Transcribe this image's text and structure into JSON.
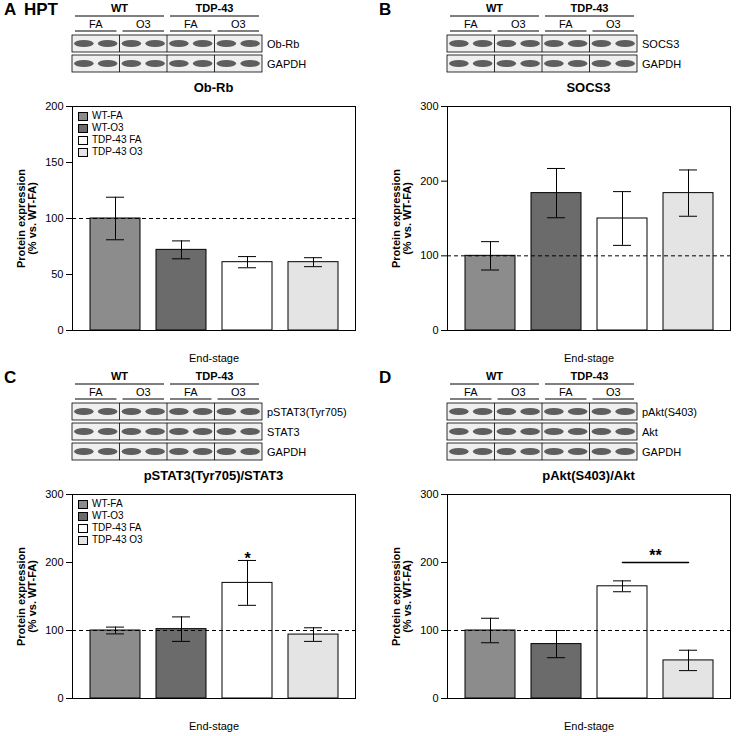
{
  "chart_data": [
    {
      "type": "bar",
      "panel": "A",
      "region_label": "HPT",
      "title": "Ob-Rb",
      "blot": {
        "groups": [
          "WT",
          "TDP-43"
        ],
        "conditions": [
          "FA",
          "O3",
          "FA",
          "O3"
        ],
        "bands": [
          "Ob-Rb",
          "GAPDH"
        ]
      },
      "categories": [
        "WT-FA",
        "WT-O3",
        "TDP-43 FA",
        "TDP-43 O3"
      ],
      "values": [
        100,
        72,
        61,
        61
      ],
      "errors": [
        19,
        8,
        5,
        4
      ],
      "colors": [
        "#8c8c8c",
        "#6b6b6b",
        "#ffffff",
        "#e4e4e4"
      ],
      "ylabel": "Protein expression\n(% vs. WT-FA)",
      "xlabel": "End-stage",
      "ylim": [
        0,
        200
      ],
      "yticks": [
        0,
        50,
        100,
        150,
        200
      ],
      "reference_line": 100,
      "legend": "upper left",
      "tick_labels": "y"
    },
    {
      "type": "bar",
      "panel": "B",
      "title": "SOCS3",
      "blot": {
        "groups": [
          "WT",
          "TDP-43"
        ],
        "conditions": [
          "FA",
          "O3",
          "FA",
          "O3"
        ],
        "bands": [
          "SOCS3",
          "GAPDH"
        ]
      },
      "categories": [
        "WT-FA",
        "WT-O3",
        "TDP-43 FA",
        "TDP-43 O3"
      ],
      "values": [
        100,
        184,
        150,
        184
      ],
      "errors": [
        19,
        33,
        36,
        31
      ],
      "colors": [
        "#8c8c8c",
        "#6b6b6b",
        "#ffffff",
        "#e4e4e4"
      ],
      "ylabel": "Protein expression\n(% vs. WT-FA)",
      "xlabel": "End-stage",
      "ylim": [
        0,
        300
      ],
      "yticks": [
        0,
        100,
        200,
        300
      ],
      "reference_line": 100,
      "tick_labels": "y"
    },
    {
      "type": "bar",
      "panel": "C",
      "title": "pSTAT3(Tyr705)/STAT3",
      "blot": {
        "groups": [
          "WT",
          "TDP-43"
        ],
        "conditions": [
          "FA",
          "O3",
          "FA",
          "O3"
        ],
        "bands": [
          "pSTAT3(Tyr705)",
          "STAT3",
          "GAPDH"
        ]
      },
      "categories": [
        "WT-FA",
        "WT-O3",
        "TDP-43 FA",
        "TDP-43 O3"
      ],
      "values": [
        100,
        102,
        170,
        94
      ],
      "errors": [
        5,
        18,
        33,
        10
      ],
      "colors": [
        "#8c8c8c",
        "#6b6b6b",
        "#ffffff",
        "#e4e4e4"
      ],
      "ylabel": "Protein expression\n(% vs. WT-FA)",
      "xlabel": "End-stage",
      "ylim": [
        0,
        300
      ],
      "yticks": [
        0,
        100,
        200,
        300
      ],
      "reference_line": 100,
      "legend": "upper left",
      "tick_labels": "y",
      "annotations": [
        {
          "text": "*",
          "category": "TDP-43 FA",
          "y": 206
        }
      ]
    },
    {
      "type": "bar",
      "panel": "D",
      "title": "pAkt(S403)/Akt",
      "blot": {
        "groups": [
          "WT",
          "TDP-43"
        ],
        "conditions": [
          "FA",
          "O3",
          "FA",
          "O3"
        ],
        "bands": [
          "pAkt(S403)",
          "Akt",
          "GAPDH"
        ]
      },
      "categories": [
        "WT-FA",
        "WT-O3",
        "TDP-43 FA",
        "TDP-43 O3"
      ],
      "values": [
        100,
        80,
        165,
        56
      ],
      "errors": [
        18,
        20,
        8,
        15
      ],
      "colors": [
        "#8c8c8c",
        "#6b6b6b",
        "#ffffff",
        "#e4e4e4"
      ],
      "ylabel": "Protein expression\n(% vs. WT-FA)",
      "xlabel": "End-stage",
      "ylim": [
        0,
        300
      ],
      "yticks": [
        0,
        100,
        200,
        300
      ],
      "reference_line": 100,
      "tick_labels": "y",
      "annotations": [
        {
          "text": "**",
          "from": "TDP-43 FA",
          "to": "TDP-43 O3",
          "y": 200
        }
      ]
    }
  ]
}
